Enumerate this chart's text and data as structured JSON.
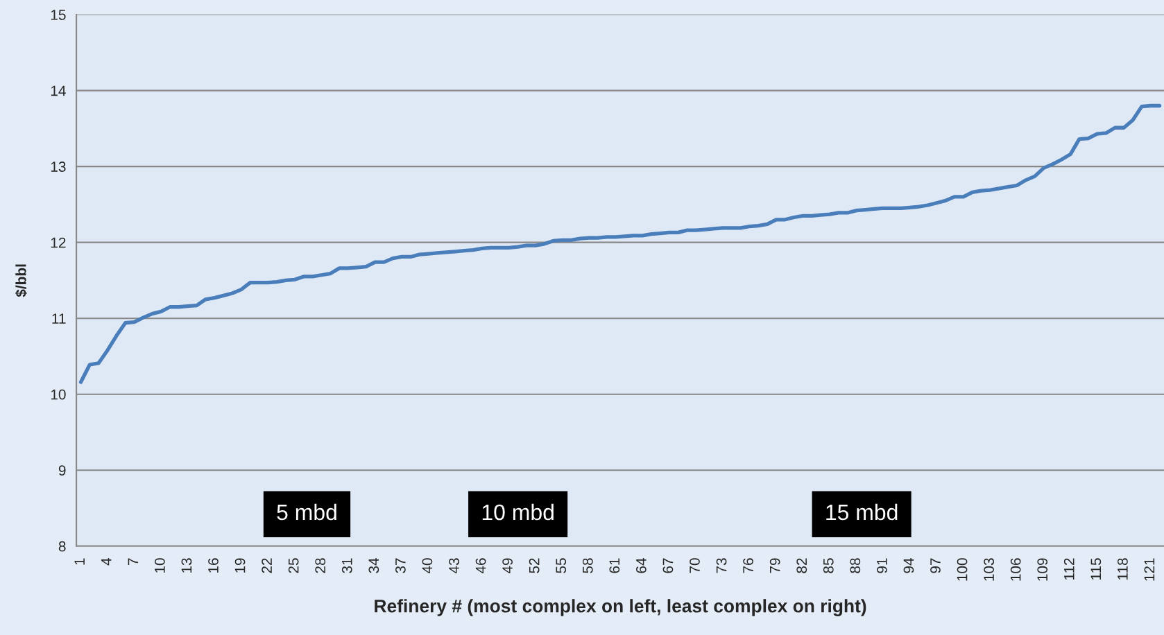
{
  "chart_data": {
    "type": "line",
    "xlabel": "Refinery # (most complex on left, least complex on right)",
    "ylabel": "$/bbl",
    "categories": [
      "1",
      null,
      null,
      "4",
      null,
      null,
      "7",
      null,
      null,
      "10",
      null,
      null,
      "13",
      null,
      null,
      "16",
      null,
      null,
      "19",
      null,
      null,
      "22",
      null,
      null,
      "25",
      null,
      null,
      "28",
      null,
      null,
      "31",
      null,
      null,
      "34",
      null,
      null,
      "37",
      null,
      null,
      "40",
      null,
      null,
      "43",
      null,
      null,
      "46",
      null,
      null,
      "49",
      null,
      null,
      "52",
      null,
      null,
      "55",
      null,
      null,
      "58",
      null,
      null,
      "61",
      null,
      null,
      "64",
      null,
      null,
      "67",
      null,
      null,
      "70",
      null,
      null,
      "73",
      null,
      null,
      "76",
      null,
      null,
      "79",
      null,
      null,
      "82",
      null,
      null,
      "85",
      null,
      null,
      "88",
      null,
      null,
      "91",
      null,
      null,
      "94",
      null,
      null,
      "97",
      null,
      null,
      "100",
      null,
      null,
      "103",
      null,
      null,
      "106",
      null,
      null,
      "109",
      null,
      null,
      "112",
      null,
      null,
      "115",
      null,
      null,
      "118",
      null,
      null,
      "121",
      null
    ],
    "series": [
      {
        "color": "#4a7ebb",
        "values": [
          10.16,
          10.39,
          10.41,
          10.58,
          10.77,
          10.94,
          10.95,
          11.01,
          11.06,
          11.09,
          11.15,
          11.15,
          11.16,
          11.17,
          11.25,
          11.27,
          11.3,
          11.33,
          11.38,
          11.47,
          11.47,
          11.47,
          11.48,
          11.5,
          11.51,
          11.55,
          11.55,
          11.57,
          11.59,
          11.66,
          11.66,
          11.67,
          11.68,
          11.74,
          11.74,
          11.79,
          11.81,
          11.81,
          11.84,
          11.85,
          11.86,
          11.87,
          11.88,
          11.89,
          11.9,
          11.92,
          11.93,
          11.93,
          11.93,
          11.94,
          11.96,
          11.96,
          11.98,
          12.02,
          12.03,
          12.03,
          12.05,
          12.06,
          12.06,
          12.07,
          12.07,
          12.08,
          12.09,
          12.09,
          12.11,
          12.12,
          12.13,
          12.13,
          12.16,
          12.16,
          12.17,
          12.18,
          12.19,
          12.19,
          12.19,
          12.21,
          12.22,
          12.24,
          12.3,
          12.3,
          12.33,
          12.35,
          12.35,
          12.36,
          12.37,
          12.39,
          12.39,
          12.42,
          12.43,
          12.44,
          12.45,
          12.45,
          12.45,
          12.46,
          12.47,
          12.49,
          12.52,
          12.55,
          12.6,
          12.6,
          12.66,
          12.68,
          12.69,
          12.71,
          12.73,
          12.75,
          12.82,
          12.87,
          12.98,
          13.03,
          13.09,
          13.16,
          13.36,
          13.37,
          13.43,
          13.44,
          13.51,
          13.51,
          13.61,
          13.79,
          13.8,
          13.8
        ]
      }
    ],
    "ylim": [
      8,
      15
    ],
    "yticks": [
      8,
      9,
      10,
      11,
      12,
      13,
      14,
      15
    ],
    "grid": "y",
    "line_style": "solid",
    "marker": "none",
    "annotations": [
      "5 mbd",
      "10 mbd",
      "15 mbd"
    ]
  }
}
